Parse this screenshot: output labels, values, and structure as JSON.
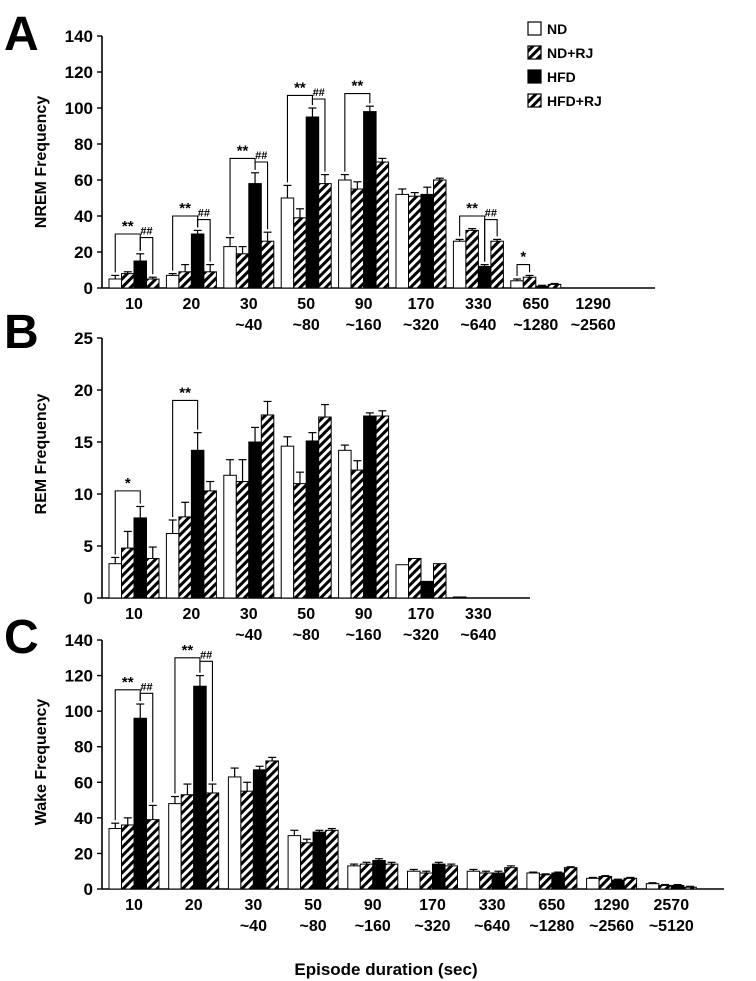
{
  "colors": {
    "ink": "#000000",
    "paper": "#ffffff"
  },
  "xlabel": "Episode duration (sec)",
  "legend": [
    {
      "label": "ND",
      "style": "white"
    },
    {
      "label": "ND+RJ",
      "style": "hatch"
    },
    {
      "label": "HFD",
      "style": "black"
    },
    {
      "label": "HFD+RJ",
      "style": "hatch"
    }
  ],
  "chart_data": [
    {
      "panel": "A",
      "type": "bar",
      "ylabel": "NREM Frequency",
      "ylim": [
        0,
        140
      ],
      "yticks": [
        0,
        20,
        40,
        60,
        80,
        100,
        120,
        140
      ],
      "categories": [
        [
          "10",
          ""
        ],
        [
          "20",
          ""
        ],
        [
          "30",
          "~40"
        ],
        [
          "50",
          "~80"
        ],
        [
          "90",
          "~160"
        ],
        [
          "170",
          "~320"
        ],
        [
          "330",
          "~640"
        ],
        [
          "650",
          "~1280"
        ],
        [
          "1290",
          "~2560"
        ]
      ],
      "series": [
        {
          "name": "ND",
          "values": [
            5,
            7,
            23,
            50,
            60,
            52,
            26,
            4,
            0
          ],
          "errors": [
            2,
            1,
            5,
            7,
            3,
            3,
            1,
            1,
            0
          ]
        },
        {
          "name": "ND+RJ",
          "values": [
            8,
            9,
            19,
            39,
            55,
            51,
            32,
            6,
            0
          ],
          "errors": [
            1,
            4,
            4,
            5,
            4,
            2,
            1,
            1,
            0
          ]
        },
        {
          "name": "HFD",
          "values": [
            15,
            30,
            58,
            95,
            98,
            52,
            12,
            1,
            0
          ],
          "errors": [
            4,
            2,
            6,
            5,
            3,
            4,
            1,
            0.5,
            0
          ]
        },
        {
          "name": "HFD+RJ",
          "values": [
            5,
            9,
            26,
            58,
            70,
            60,
            26,
            2,
            0
          ],
          "errors": [
            1,
            4,
            5,
            5,
            2,
            1,
            1,
            0.5,
            0
          ]
        }
      ],
      "significance": [
        {
          "cat": 0,
          "from": 0,
          "to": 2,
          "label": "**",
          "y": 30
        },
        {
          "cat": 0,
          "from": 2,
          "to": 3,
          "label": "##",
          "y": 28
        },
        {
          "cat": 1,
          "from": 0,
          "to": 2,
          "label": "**",
          "y": 40
        },
        {
          "cat": 1,
          "from": 2,
          "to": 3,
          "label": "##",
          "y": 38
        },
        {
          "cat": 2,
          "from": 0,
          "to": 2,
          "label": "**",
          "y": 72
        },
        {
          "cat": 2,
          "from": 2,
          "to": 3,
          "label": "##",
          "y": 70
        },
        {
          "cat": 3,
          "from": 0,
          "to": 2,
          "label": "**",
          "y": 107
        },
        {
          "cat": 3,
          "from": 2,
          "to": 3,
          "label": "##",
          "y": 105
        },
        {
          "cat": 4,
          "from": 0,
          "to": 2,
          "label": "**",
          "y": 108
        },
        {
          "cat": 6,
          "from": 0,
          "to": 2,
          "label": "**",
          "y": 40
        },
        {
          "cat": 6,
          "from": 2,
          "to": 3,
          "label": "##",
          "y": 38
        },
        {
          "cat": 7,
          "from": 0,
          "to": 1,
          "label": "*",
          "y": 13
        }
      ]
    },
    {
      "panel": "B",
      "type": "bar",
      "ylabel": "REM Frequency",
      "ylim": [
        0,
        25
      ],
      "yticks": [
        0,
        5,
        10,
        15,
        20,
        25
      ],
      "categories": [
        [
          "10",
          ""
        ],
        [
          "20",
          ""
        ],
        [
          "30",
          "~40"
        ],
        [
          "50",
          "~80"
        ],
        [
          "90",
          "~160"
        ],
        [
          "170",
          "~320"
        ],
        [
          "330",
          "~640"
        ]
      ],
      "series": [
        {
          "name": "ND",
          "values": [
            3.3,
            6.2,
            11.8,
            14.6,
            14.2,
            3.2,
            0.1
          ],
          "errors": [
            0.6,
            1.3,
            1.5,
            0.9,
            0.5,
            0,
            0
          ]
        },
        {
          "name": "ND+RJ",
          "values": [
            4.8,
            7.8,
            11.2,
            11.0,
            12.3,
            3.8,
            0
          ],
          "errors": [
            1.6,
            1.4,
            2.1,
            1.1,
            0.9,
            0,
            0
          ]
        },
        {
          "name": "HFD",
          "values": [
            7.7,
            14.2,
            15.0,
            15.1,
            17.5,
            1.6,
            0
          ],
          "errors": [
            1.1,
            1.7,
            1.4,
            0.8,
            0.3,
            0,
            0
          ]
        },
        {
          "name": "HFD+RJ",
          "values": [
            3.8,
            10.3,
            17.6,
            17.4,
            17.5,
            3.3,
            0
          ],
          "errors": [
            1.1,
            0.9,
            1.3,
            1.2,
            0.5,
            0,
            0
          ]
        }
      ],
      "significance": [
        {
          "cat": 0,
          "from": 0,
          "to": 2,
          "label": "*",
          "y": 10.3
        },
        {
          "cat": 1,
          "from": 0,
          "to": 2,
          "label": "**",
          "y": 19.0
        }
      ]
    },
    {
      "panel": "C",
      "type": "bar",
      "ylabel": "Wake Frequency",
      "ylim": [
        0,
        140
      ],
      "yticks": [
        0,
        20,
        40,
        60,
        80,
        100,
        120,
        140
      ],
      "categories": [
        [
          "10",
          ""
        ],
        [
          "20",
          ""
        ],
        [
          "30",
          "~40"
        ],
        [
          "50",
          "~80"
        ],
        [
          "90",
          "~160"
        ],
        [
          "170",
          "~320"
        ],
        [
          "330",
          "~640"
        ],
        [
          "650",
          "~1280"
        ],
        [
          "1290",
          "~2560"
        ],
        [
          "2570",
          "~5120"
        ]
      ],
      "series": [
        {
          "name": "ND",
          "values": [
            34,
            48,
            63,
            30,
            13,
            10,
            10,
            9,
            6,
            3
          ],
          "errors": [
            3,
            4,
            5,
            3,
            1,
            1,
            1,
            0.5,
            0.5,
            0.5
          ]
        },
        {
          "name": "ND+RJ",
          "values": [
            36,
            53,
            55,
            26,
            14,
            9,
            9,
            8,
            7,
            2
          ],
          "errors": [
            4,
            6,
            5,
            2,
            1,
            1,
            1,
            0.5,
            0.5,
            0.5
          ]
        },
        {
          "name": "HFD",
          "values": [
            96,
            114,
            67,
            32,
            16,
            14,
            9,
            9,
            5,
            2
          ],
          "errors": [
            8,
            6,
            2,
            1,
            1,
            1,
            1,
            0.5,
            0.5,
            0.5
          ]
        },
        {
          "name": "HFD+RJ",
          "values": [
            39,
            54,
            72,
            33,
            14,
            13,
            12,
            12,
            6,
            1
          ],
          "errors": [
            8,
            5,
            2,
            1,
            1,
            1,
            1,
            0.5,
            0.5,
            0.5
          ]
        }
      ],
      "significance": [
        {
          "cat": 0,
          "from": 0,
          "to": 2,
          "label": "**",
          "y": 112
        },
        {
          "cat": 0,
          "from": 2,
          "to": 3,
          "label": "##",
          "y": 110
        },
        {
          "cat": 1,
          "from": 0,
          "to": 2,
          "label": "**",
          "y": 130
        },
        {
          "cat": 1,
          "from": 2,
          "to": 3,
          "label": "##",
          "y": 128
        }
      ]
    }
  ]
}
